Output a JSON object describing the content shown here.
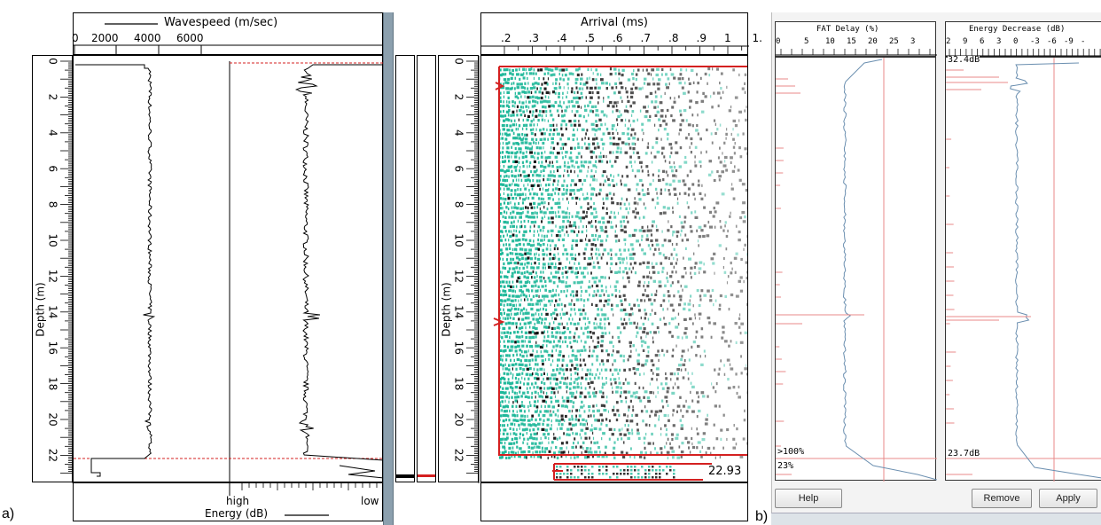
{
  "figure_labels": {
    "a": "a)",
    "b": "b)"
  },
  "panel_a": {
    "wavespeed": {
      "title": "Wavespeed (m/sec)",
      "ticks": [
        "0",
        "2000",
        "4000",
        "6000"
      ]
    },
    "energy": {
      "title": "Energy (dB)",
      "high_label": "high",
      "low_label": "low"
    },
    "depth_axis_label": "Depth (m)",
    "depth_ticks": [
      "0",
      "2",
      "4",
      "6",
      "8",
      "10",
      "12",
      "14",
      "16",
      "18",
      "20",
      "22"
    ],
    "arrival": {
      "title": "Arrival (ms)",
      "ticks": [
        ".2",
        ".3",
        ".4",
        ".5",
        ".6",
        ".7",
        ".8",
        ".9",
        "1",
        "1."
      ],
      "bottom_value": "22.93"
    }
  },
  "panel_b": {
    "fat_delay": {
      "title": "FAT Delay (%)",
      "ticks": [
        "0",
        "5",
        "10",
        "15",
        "20",
        "25",
        "3"
      ],
      "label_high": ">100%",
      "label_value": "23%"
    },
    "energy_decrease": {
      "title": "Energy Decrease (dB)",
      "ticks": [
        "2",
        "9",
        "6",
        "3",
        "0",
        "-3",
        "-6",
        "-9",
        "-"
      ],
      "top_value": "32.4dB",
      "bottom_value": "23.7dB"
    },
    "buttons": {
      "help": "Help",
      "remove": "Remove",
      "apply": "Apply"
    }
  },
  "colors": {
    "teal": "#1fb89a",
    "red": "#d42020",
    "pink": "#e88a8a",
    "blue_trace": "#6b8fb0",
    "divider": "#8ca0ae"
  }
}
